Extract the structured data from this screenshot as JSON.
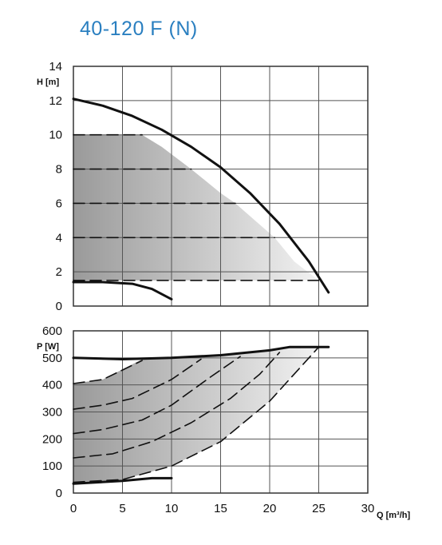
{
  "title": "40-120 F (N)",
  "chart_data": [
    {
      "type": "line",
      "ylabel": "H [m]",
      "xlim": [
        0,
        30
      ],
      "ylim": [
        0,
        14
      ],
      "x_ticks": [
        "0",
        "5",
        "10",
        "15",
        "20",
        "25",
        "30"
      ],
      "y_ticks": [
        "0",
        "2",
        "4",
        "6",
        "8",
        "10",
        "12",
        "14"
      ],
      "grid": true,
      "series": [
        {
          "style": "solid",
          "points": [
            [
              0,
              12.1
            ],
            [
              3,
              11.7
            ],
            [
              6,
              11.1
            ],
            [
              9,
              10.3
            ],
            [
              12,
              9.3
            ],
            [
              15,
              8.1
            ],
            [
              18,
              6.6
            ],
            [
              21,
              4.8
            ],
            [
              24,
              2.6
            ],
            [
              26,
              0.8
            ]
          ]
        },
        {
          "style": "solid",
          "points": [
            [
              0,
              1.4
            ],
            [
              3,
              1.4
            ],
            [
              6,
              1.3
            ],
            [
              8,
              1.0
            ],
            [
              10,
              0.4
            ]
          ]
        },
        {
          "style": "dashed",
          "points": [
            [
              0,
              10
            ],
            [
              7,
              10
            ]
          ]
        },
        {
          "style": "dashed",
          "points": [
            [
              0,
              8
            ],
            [
              12,
              8
            ]
          ]
        },
        {
          "style": "dashed",
          "points": [
            [
              0,
              6
            ],
            [
              16.5,
              6
            ]
          ]
        },
        {
          "style": "dashed",
          "points": [
            [
              0,
              4
            ],
            [
              20.5,
              4
            ]
          ]
        },
        {
          "style": "dashed",
          "points": [
            [
              0,
              1.5
            ],
            [
              25,
              1.5
            ]
          ]
        }
      ],
      "shaded_area": [
        [
          0,
          10
        ],
        [
          7,
          10
        ],
        [
          9,
          9.3
        ],
        [
          12,
          8
        ],
        [
          15,
          6.6
        ],
        [
          16.5,
          6
        ],
        [
          18.5,
          5
        ],
        [
          20.5,
          4
        ],
        [
          22.5,
          2.6
        ],
        [
          25,
          1.5
        ],
        [
          0,
          1.5
        ]
      ]
    },
    {
      "type": "line",
      "ylabel": "P [W]",
      "xlabel": "Q [m³/h]",
      "xlim": [
        0,
        30
      ],
      "ylim": [
        0,
        600
      ],
      "x_ticks": [
        "0",
        "5",
        "10",
        "15",
        "20",
        "25",
        "30"
      ],
      "y_ticks": [
        "0",
        "100",
        "200",
        "300",
        "400",
        "500",
        "600"
      ],
      "grid": true,
      "series": [
        {
          "style": "solid",
          "points": [
            [
              0,
              500
            ],
            [
              5,
              495
            ],
            [
              10,
              500
            ],
            [
              15,
              510
            ],
            [
              20,
              528
            ],
            [
              22,
              540
            ],
            [
              26,
              540
            ]
          ]
        },
        {
          "style": "solid",
          "points": [
            [
              0,
              35
            ],
            [
              5,
              45
            ],
            [
              8,
              55
            ],
            [
              10,
              55
            ]
          ]
        },
        {
          "style": "dashed",
          "points": [
            [
              0,
              405
            ],
            [
              3,
              420
            ],
            [
              7,
              490
            ]
          ]
        },
        {
          "style": "dashed",
          "points": [
            [
              0,
              310
            ],
            [
              3,
              325
            ],
            [
              6,
              350
            ],
            [
              10,
              420
            ],
            [
              13,
              495
            ]
          ]
        },
        {
          "style": "dashed",
          "points": [
            [
              0,
              220
            ],
            [
              3,
              235
            ],
            [
              7,
              270
            ],
            [
              10,
              325
            ],
            [
              14,
              430
            ],
            [
              17,
              505
            ]
          ]
        },
        {
          "style": "dashed",
          "points": [
            [
              0,
              130
            ],
            [
              4,
              145
            ],
            [
              8,
              190
            ],
            [
              12,
              260
            ],
            [
              16,
              350
            ],
            [
              19,
              440
            ],
            [
              21,
              520
            ]
          ]
        },
        {
          "style": "dashed",
          "points": [
            [
              0,
              40
            ],
            [
              5,
              50
            ],
            [
              10,
              100
            ],
            [
              15,
              190
            ],
            [
              20,
              340
            ],
            [
              23,
              460
            ],
            [
              25,
              540
            ]
          ]
        }
      ],
      "shaded_area": [
        [
          0,
          40
        ],
        [
          5,
          50
        ],
        [
          10,
          100
        ],
        [
          15,
          190
        ],
        [
          20,
          340
        ],
        [
          23,
          460
        ],
        [
          25,
          540
        ],
        [
          22,
          540
        ],
        [
          20,
          528
        ],
        [
          15,
          510
        ],
        [
          10,
          500
        ],
        [
          7,
          495
        ],
        [
          3,
          420
        ],
        [
          0,
          405
        ]
      ]
    }
  ]
}
